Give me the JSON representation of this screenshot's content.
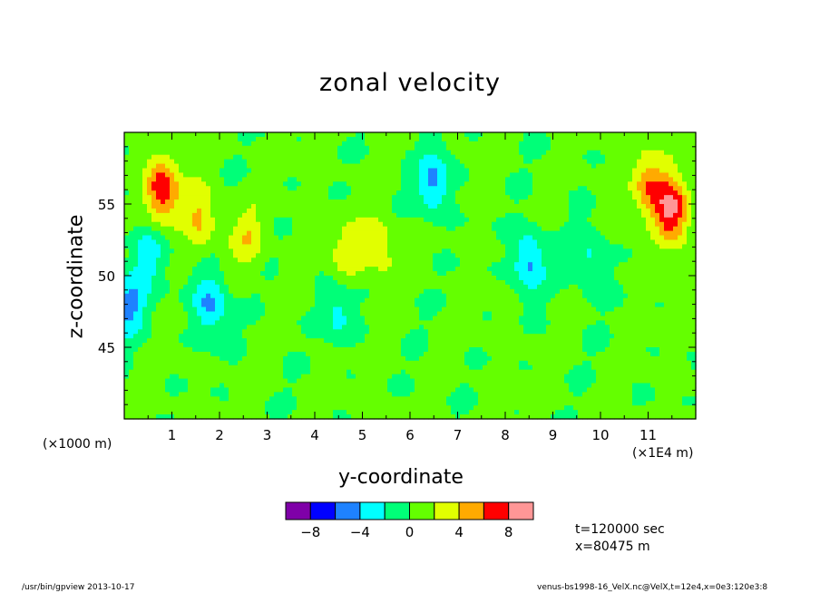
{
  "chart_data": {
    "type": "heatmap",
    "title": "zonal velocity",
    "xlabel": "y-coordinate",
    "ylabel": "z-coordinate",
    "x_multiplier_left": "(×1000 m)",
    "x_multiplier_right": "(×1E4 m)",
    "xlim": [
      0,
      12
    ],
    "ylim": [
      40,
      60
    ],
    "x_ticks": [
      1,
      2,
      3,
      4,
      5,
      6,
      7,
      8,
      9,
      10,
      11
    ],
    "y_ticks": [
      45,
      50,
      55
    ],
    "colorbar": {
      "levels": [
        -10,
        -8,
        -6,
        -4,
        -2,
        0,
        2,
        4,
        6,
        8,
        10
      ],
      "labels": [
        "-8",
        "-4",
        "0",
        "4",
        "8"
      ],
      "colors": [
        "#7f00a8",
        "#0000ff",
        "#1e82ff",
        "#00ffff",
        "#00ff78",
        "#64ff00",
        "#e1ff00",
        "#ffaa00",
        "#ff0000",
        "#ff9696"
      ]
    },
    "field_features": [
      {
        "y": 0.8,
        "z": 56,
        "value": 7.5
      },
      {
        "y": 11.5,
        "z": 54.5,
        "value": 8.5
      },
      {
        "y": 11.0,
        "z": 56.5,
        "value": 5
      },
      {
        "y": 1.6,
        "z": 54,
        "value": 4
      },
      {
        "y": 2.6,
        "z": 52.5,
        "value": 3
      },
      {
        "y": 4.7,
        "z": 51.5,
        "value": 3
      },
      {
        "y": 5.4,
        "z": 52,
        "value": 3
      },
      {
        "y": 0.5,
        "z": 51.5,
        "value": -3.5
      },
      {
        "y": 0.1,
        "z": 48,
        "value": -5
      },
      {
        "y": 1.8,
        "z": 48,
        "value": -5
      },
      {
        "y": 4.5,
        "z": 47.5,
        "value": -3
      },
      {
        "y": 6.5,
        "z": 56.5,
        "value": -5
      },
      {
        "y": 8.5,
        "z": 51,
        "value": -5
      },
      {
        "y": 9.8,
        "z": 51,
        "value": -3
      }
    ]
  },
  "info": {
    "time": "t=120000 sec",
    "position": "x=80475 m"
  },
  "footer": {
    "left": "/usr/bin/gpview   2013-10-17",
    "right": "venus-bs1998-16_VelX.nc@VelX,t=12e4,x=0e3:120e3:8"
  }
}
